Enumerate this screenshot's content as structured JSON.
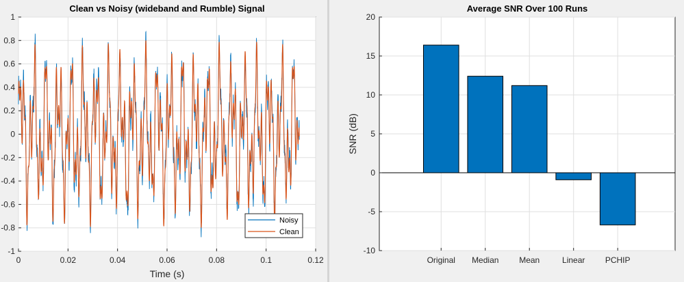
{
  "chart_data": [
    {
      "type": "line",
      "title": "Clean vs Noisy (wideband and Rumble) Signal",
      "xlabel": "Time (s)",
      "ylabel": "",
      "xlim": [
        0,
        0.12
      ],
      "ylim": [
        -1,
        1
      ],
      "xticks": [
        0,
        0.02,
        0.04,
        0.06,
        0.08,
        0.1,
        0.12
      ],
      "xtick_labels": [
        "0",
        "0.02",
        "0.04",
        "0.06",
        "0.08",
        "0.1",
        "0.12"
      ],
      "yticks": [
        -1,
        -0.8,
        -0.6,
        -0.4,
        -0.2,
        0,
        0.2,
        0.4,
        0.6,
        0.8,
        1
      ],
      "ytick_labels": [
        "-1",
        "-0.8",
        "-0.6",
        "-0.4",
        "-0.2",
        "0",
        "0.2",
        "0.4",
        "0.6",
        "0.8",
        "1"
      ],
      "grid": true,
      "legend": "bottom-right",
      "data_xmax": 0.1134,
      "series": [
        {
          "name": "Noisy",
          "color": "#0072BD",
          "amplitude_range": [
            -0.87,
            0.88
          ]
        },
        {
          "name": "Clean",
          "color": "#D95319",
          "amplitude_range": [
            -0.8,
            0.8
          ]
        }
      ]
    },
    {
      "type": "bar",
      "title": "Average SNR Over 100 Runs",
      "xlabel": "",
      "ylabel": "SNR (dB)",
      "categories": [
        "Original",
        "Median",
        "Mean",
        "Linear",
        "PCHIP"
      ],
      "values": [
        16.4,
        12.4,
        11.2,
        -0.9,
        -6.7
      ],
      "ylim": [
        -10,
        20
      ],
      "yticks": [
        -10,
        -5,
        0,
        5,
        10,
        15,
        20
      ],
      "ytick_labels": [
        "-10",
        "-5",
        "0",
        "5",
        "10",
        "15",
        "20"
      ],
      "grid": true,
      "bar_color": "#0072BD"
    }
  ]
}
